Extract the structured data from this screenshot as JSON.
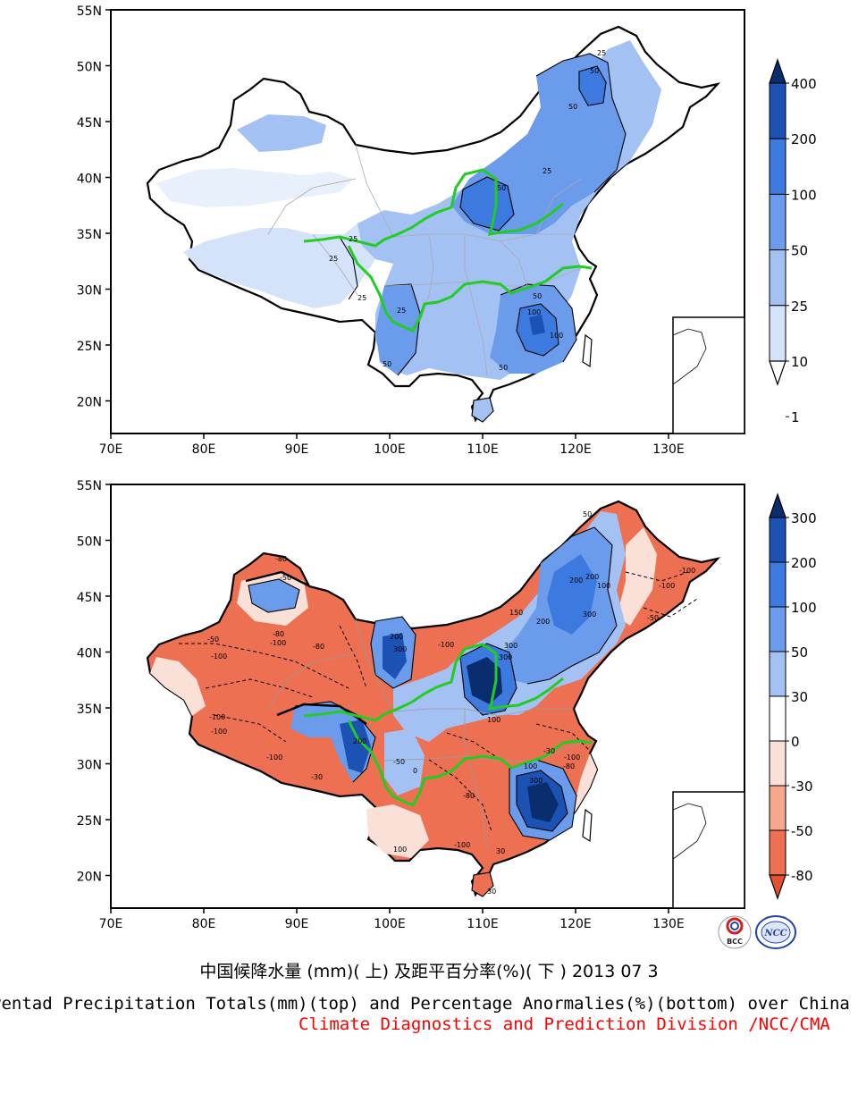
{
  "panels": [
    {
      "id": "top",
      "lat_labels": [
        "55N",
        "50N",
        "45N",
        "40N",
        "35N",
        "30N",
        "25N",
        "20N"
      ],
      "lon_labels": [
        "70E",
        "80E",
        "90E",
        "100E",
        "110E",
        "120E",
        "130E"
      ],
      "colorbar": {
        "labels": [
          "400",
          "200",
          "100",
          "50",
          "25",
          "10",
          "1"
        ],
        "colors": [
          "#0a2d6e",
          "#1c52b4",
          "#3d7ae0",
          "#6b9cec",
          "#a3c2f3",
          "#d4e3fa",
          "#ffffff"
        ]
      },
      "contour_labels": [
        "25",
        "50",
        "100"
      ]
    },
    {
      "id": "bottom",
      "lat_labels": [
        "55N",
        "50N",
        "45N",
        "40N",
        "35N",
        "30N",
        "25N",
        "20N"
      ],
      "lon_labels": [
        "70E",
        "80E",
        "90E",
        "100E",
        "110E",
        "120E",
        "130E"
      ],
      "colorbar": {
        "labels": [
          "300",
          "200",
          "100",
          "50",
          "30",
          "0",
          "-30",
          "-50",
          "-80"
        ],
        "colors": [
          "#0a2d6e",
          "#1c52b4",
          "#3d7ae0",
          "#6b9cec",
          "#a3c2f3",
          "#ffffff",
          "#fbe0d8",
          "#f6a88f",
          "#ee7052",
          "#e5502f"
        ]
      },
      "contour_labels": [
        "-100",
        "-80",
        "-50",
        "-30",
        "0",
        "30",
        "50",
        "100",
        "200",
        "300"
      ]
    }
  ],
  "caption": {
    "chinese": "中国候降水量 (mm)( 上) 及距平百分率(%)( 下 ) 2013 07 3",
    "english": "Pentad Precipitation Totals(mm)(top) and Percentage Anormalies(%)(bottom) over China",
    "credit": "Climate Diagnostics and Prediction Division /NCC/CMA",
    "credit_color": "#ff0000"
  },
  "logos": {
    "left": "BCC",
    "right": "NCC"
  },
  "colors": {
    "river": "#22cc22",
    "blue_light": "#d4e3fa",
    "blue_mid": "#6b9cec",
    "blue_dark": "#1c52b4",
    "red_light": "#fbe0d8",
    "red_mid": "#ee7052"
  }
}
